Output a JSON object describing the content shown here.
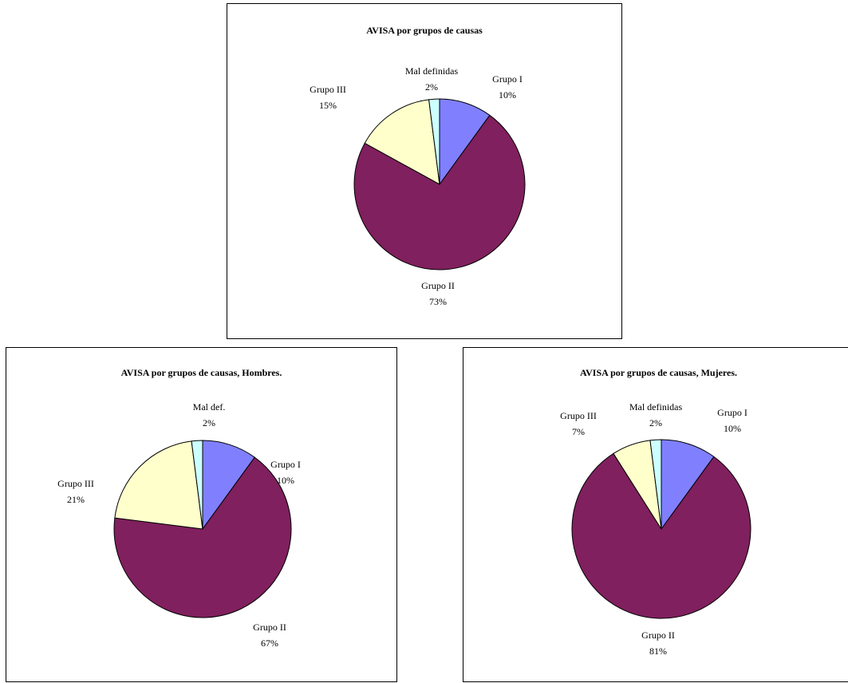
{
  "chart_data": [
    {
      "type": "pie",
      "title": "AVISA por grupos de causas",
      "slices": [
        {
          "label": "Grupo I",
          "value": 10,
          "pct_label": "10%"
        },
        {
          "label": "Grupo II",
          "value": 73,
          "pct_label": "73%"
        },
        {
          "label": "Grupo III",
          "value": 15,
          "pct_label": "15%"
        },
        {
          "label": "Mal definidas",
          "value": 2,
          "pct_label": "2%"
        }
      ]
    },
    {
      "type": "pie",
      "title": "AVISA por grupos de causas, Hombres.",
      "slices": [
        {
          "label": "Grupo I",
          "value": 10,
          "pct_label": "10%"
        },
        {
          "label": "Grupo II",
          "value": 67,
          "pct_label": "67%"
        },
        {
          "label": "Grupo III",
          "value": 21,
          "pct_label": "21%"
        },
        {
          "label": "Mal def.",
          "value": 2,
          "pct_label": "2%"
        }
      ]
    },
    {
      "type": "pie",
      "title": "AVISA por grupos de causas, Mujeres.",
      "slices": [
        {
          "label": "Grupo I",
          "value": 10,
          "pct_label": "10%"
        },
        {
          "label": "Grupo II",
          "value": 81,
          "pct_label": "81%"
        },
        {
          "label": "Grupo III",
          "value": 7,
          "pct_label": "7%"
        },
        {
          "label": "Mal definidas",
          "value": 2,
          "pct_label": "2%"
        }
      ]
    }
  ],
  "colors": {
    "grupo_i": "#8080ff",
    "grupo_ii": "#80205e",
    "grupo_iii": "#ffffcc",
    "mal_definidas": "#ccffff",
    "stroke": "#000000"
  }
}
